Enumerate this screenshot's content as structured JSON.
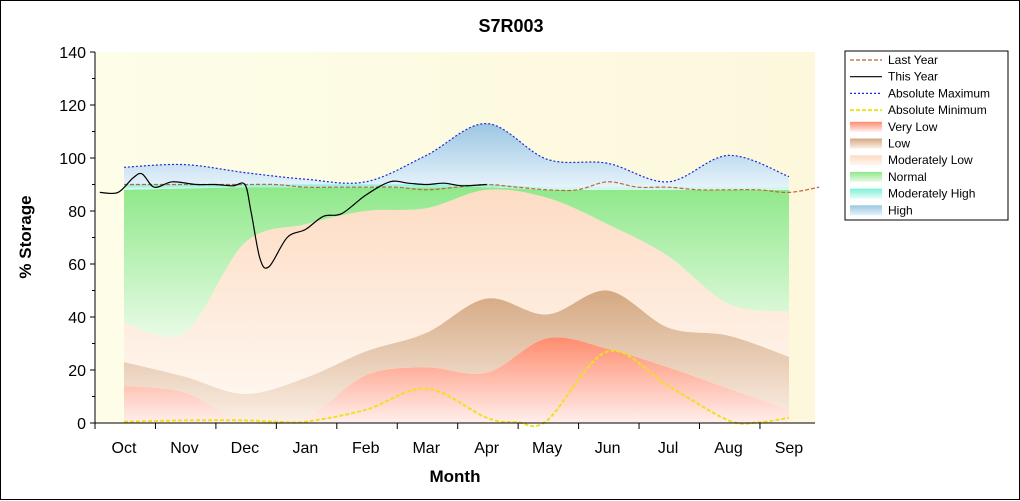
{
  "chart_data": {
    "type": "area",
    "title": "S7R003",
    "xlabel": "Month",
    "ylabel": "% Storage",
    "ylim": [
      0,
      140
    ],
    "yticks": [
      0,
      20,
      40,
      60,
      80,
      100,
      120,
      140
    ],
    "categories": [
      "Oct",
      "Nov",
      "Dec",
      "Jan",
      "Feb",
      "Mar",
      "Apr",
      "May",
      "Jun",
      "Jul",
      "Aug",
      "Sep"
    ],
    "grid": false,
    "legend_position": "right",
    "bands": [
      {
        "name": "Very Low",
        "color_top": "#ff8c6e",
        "color_bottom": "#fff0ee",
        "lower": [
          0,
          0,
          0,
          0,
          0,
          0,
          0,
          0,
          0,
          0,
          0,
          0
        ],
        "upper": [
          14,
          11.5,
          0.5,
          2,
          18,
          21,
          19,
          32,
          28,
          21,
          13,
          5
        ]
      },
      {
        "name": "Low",
        "color_top": "#d4a882",
        "color_bottom": "#fbf0e6",
        "lower": [
          14,
          11.5,
          0.5,
          2,
          18,
          21,
          19,
          32,
          28,
          21,
          13,
          5
        ],
        "upper": [
          23,
          17.5,
          11,
          17,
          27,
          34,
          47,
          41,
          50,
          36,
          33,
          25
        ]
      },
      {
        "name": "Moderately Low",
        "color_top": "#fddcc4",
        "color_bottom": "#fff6ee",
        "lower": [
          23,
          17.5,
          11,
          17,
          27,
          34,
          47,
          41,
          50,
          36,
          33,
          25
        ],
        "upper": [
          38,
          34,
          68,
          75,
          80,
          81,
          88,
          85,
          75,
          63,
          45,
          42
        ]
      },
      {
        "name": "Normal",
        "color_top": "#8fe88a",
        "color_bottom": "#e8fbe6",
        "lower": [
          38,
          34,
          68,
          75,
          80,
          81,
          88,
          85,
          75,
          63,
          45,
          42
        ],
        "upper": [
          88,
          88.5,
          89,
          89,
          89,
          89,
          89,
          88,
          88,
          88,
          88,
          88
        ]
      },
      {
        "name": "Moderately High",
        "color_top": "#7df0d8",
        "color_bottom": "#e6fdf7",
        "lower": [
          88,
          88.5,
          89,
          89,
          89,
          89,
          89,
          88,
          88,
          88,
          88,
          88
        ],
        "upper": [
          90,
          90,
          90,
          90,
          90,
          90,
          90,
          89,
          89,
          89,
          89,
          89
        ]
      },
      {
        "name": "High",
        "color_top": "#9cc6e2",
        "color_bottom": "#e6f3fb",
        "lower": [
          90,
          90,
          90,
          90,
          90,
          90,
          90,
          89,
          89,
          89,
          89,
          89
        ],
        "upper": [
          96.5,
          97.5,
          94.5,
          92,
          91,
          101,
          113,
          99.5,
          98,
          91,
          101,
          93
        ]
      }
    ],
    "series": [
      {
        "name": "Last Year",
        "color": "#c0643c",
        "style": "dashed",
        "x": [
          0,
          0.5,
          1,
          1.5,
          2,
          2.5,
          3,
          3.5,
          4,
          4.5,
          5,
          5.5,
          6,
          6.5,
          7,
          7.5,
          8,
          8.5,
          9,
          9.5,
          10,
          10.5,
          11,
          11.5
        ],
        "y": [
          90,
          90,
          90,
          90,
          90,
          90,
          89,
          89,
          89,
          89,
          88,
          89,
          90,
          89,
          88,
          88,
          91,
          89,
          89,
          88,
          88,
          88,
          87,
          89
        ]
      },
      {
        "name": "This Year",
        "color": "#000000",
        "style": "solid",
        "x": [
          -0.4,
          -0.1,
          0.15,
          0.3,
          0.5,
          0.8,
          1.2,
          1.5,
          1.8,
          2.0,
          2.1,
          2.25,
          2.4,
          2.7,
          3.0,
          3.3,
          3.6,
          4.0,
          4.4,
          4.7,
          5.0,
          5.3,
          5.6,
          6.0
        ],
        "y": [
          87,
          87,
          92.5,
          94,
          89,
          91,
          90,
          90,
          89.5,
          90,
          80,
          62,
          59,
          70,
          73,
          78,
          79,
          86,
          91,
          90.5,
          90,
          90.5,
          89.5,
          90
        ]
      },
      {
        "name": "Absolute Maximum",
        "color": "#1a2bd6",
        "style": "dotted",
        "x": [
          0,
          1,
          2,
          3,
          4,
          5,
          6,
          7,
          8,
          9,
          10,
          11
        ],
        "y": [
          96.5,
          97.5,
          94.5,
          92,
          91,
          101,
          113,
          99.5,
          98,
          91,
          101,
          93
        ]
      },
      {
        "name": "Absolute Minimum",
        "color": "#f0e020",
        "style": "dashed",
        "x": [
          0,
          1,
          2,
          2.5,
          3,
          4,
          5,
          6,
          6.5,
          7,
          8,
          9,
          10,
          10.5,
          11
        ],
        "y": [
          0.5,
          1,
          1,
          0.5,
          0.5,
          5,
          13,
          2,
          0.3,
          1,
          27,
          14,
          1,
          0.3,
          2
        ]
      }
    ],
    "legend": [
      "Last Year",
      "This Year",
      "Absolute Maximum",
      "Absolute Minimum",
      "Very Low",
      "Low",
      "Moderately Low",
      "Normal",
      "Moderately High",
      "High"
    ]
  },
  "colors": {
    "plot_background_left": "#fdfde8",
    "plot_background_right": "#fdf8dc"
  }
}
